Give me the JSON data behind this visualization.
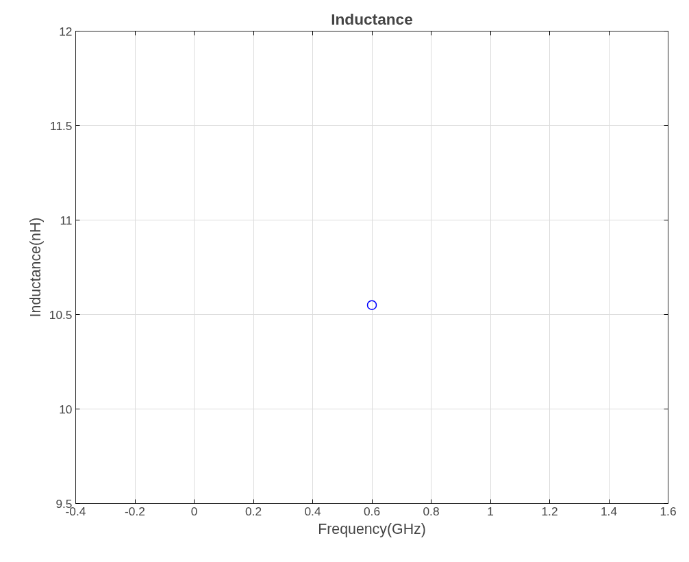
{
  "chart_data": {
    "type": "scatter",
    "title": "Inductance",
    "xlabel": "Frequency(GHz)",
    "ylabel": "Inductance(nH)",
    "x": [
      0.6
    ],
    "series": [
      {
        "color": "#0000ff",
        "values": [
          10.55
        ]
      }
    ],
    "marker": "circle",
    "grid": true,
    "xlim": [
      -0.4,
      1.6
    ],
    "xticks": [
      -0.4,
      -0.2,
      0,
      0.2,
      0.4,
      0.6,
      0.8,
      1,
      1.2,
      1.4,
      1.6
    ],
    "ylim": [
      9.5,
      12
    ],
    "yticks": [
      9.5,
      10,
      10.5,
      11,
      11.5,
      12
    ]
  }
}
